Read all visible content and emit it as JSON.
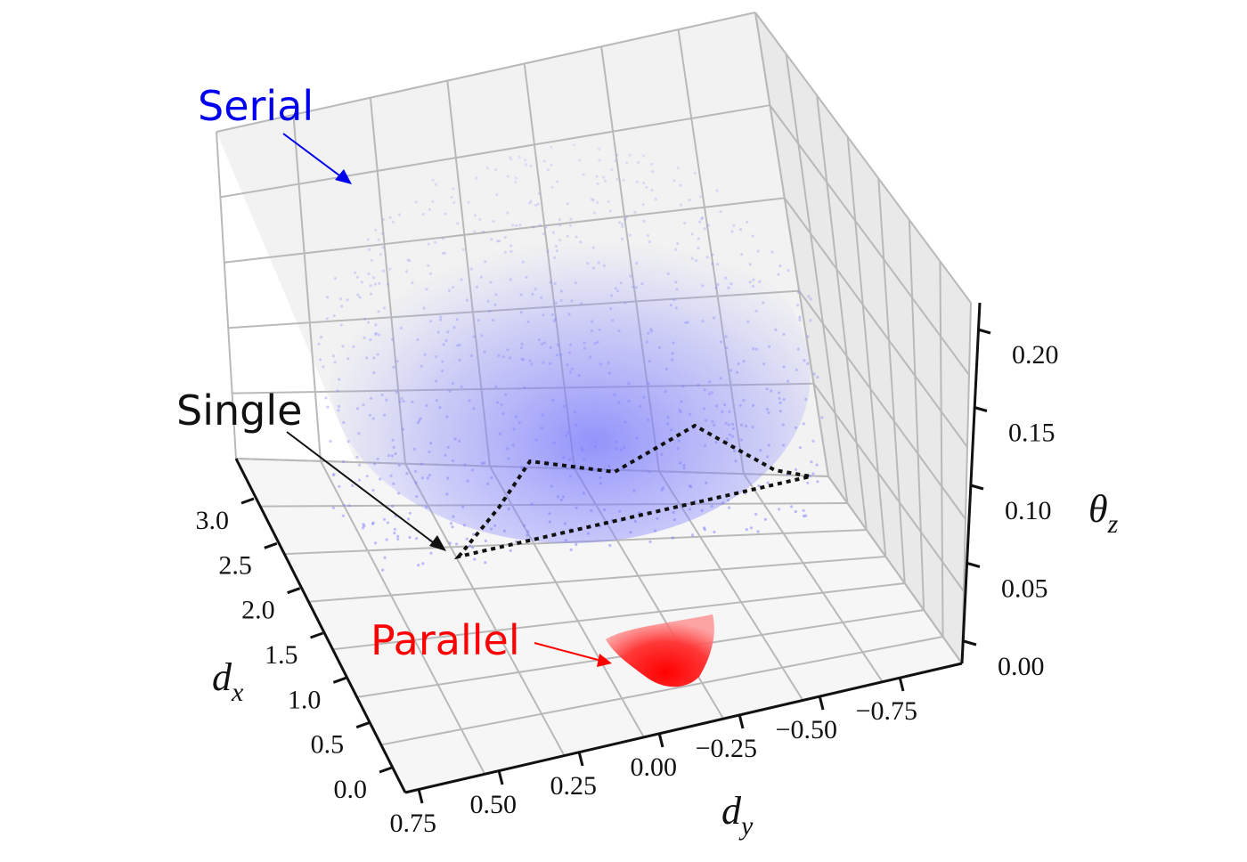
{
  "chart_data": {
    "type": "scatter",
    "projection": "3d",
    "axes": {
      "x": {
        "label": "d",
        "subscript": "x",
        "ticks": [
          "0.0",
          "0.5",
          "1.0",
          "1.5",
          "2.0",
          "2.5",
          "3.0"
        ]
      },
      "y": {
        "label": "d",
        "subscript": "y",
        "ticks": [
          "0.75",
          "0.50",
          "0.25",
          "0.00",
          "−0.25",
          "−0.50",
          "−0.75"
        ]
      },
      "z": {
        "label": "θ",
        "subscript": "z",
        "ticks": [
          "0.00",
          "0.05",
          "0.10",
          "0.15",
          "0.20"
        ]
      }
    },
    "grid": true,
    "series": [
      {
        "name": "Serial",
        "color": "#0000ee",
        "point_color": "#8080ff",
        "xlim": [
          0.0,
          3.0
        ],
        "ylim": [
          -0.75,
          0.75
        ],
        "zlim": [
          0.0,
          0.2
        ]
      },
      {
        "name": "Single",
        "color": "#000000",
        "boundary": "dotted",
        "zlim": [
          0.0,
          0.0
        ]
      },
      {
        "name": "Parallel",
        "color": "#ff0000",
        "xlim": [
          0.7,
          1.2
        ],
        "ylim": [
          -0.35,
          0.05
        ],
        "zlim": [
          0.0,
          0.015
        ]
      }
    ]
  }
}
